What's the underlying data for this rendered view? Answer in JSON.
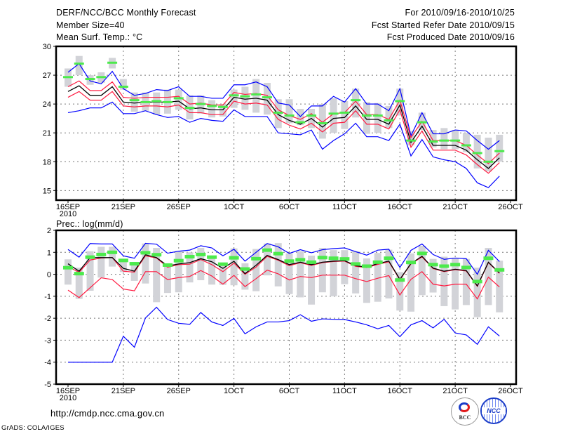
{
  "header": {
    "title": "DERF/NCC/BCC Monthly Forecast",
    "member_size": "Member Size=40",
    "period": "For 2010/09/16-2010/10/25",
    "start_date": "Fcst Started Refer Date 2010/09/15",
    "produced_date": "Fcst Produced Date 2010/09/16"
  },
  "footer": {
    "url": "http://cmdp.ncc.cma.gov.cn",
    "credit": "GrADS: COLA/IGES",
    "logo_bcc": "BCC",
    "logo_ncc": "NCC"
  },
  "colors": {
    "max_min": "#0000ff",
    "spread": "#ff1a40",
    "mean": "#000000",
    "range": "#d2d3d8",
    "obs": "#4cea4c",
    "grid": "#777777"
  },
  "chart_data": [
    {
      "type": "line",
      "title": "Mean Surf. Temp.: °C",
      "x_ticks": [
        "16SEP",
        "21SEP",
        "26SEP",
        "1OCT",
        "6OCT",
        "11OCT",
        "16OCT",
        "21OCT",
        "26OCT"
      ],
      "x_tick_year": "2010",
      "y_ticks": [
        "15",
        "18",
        "21",
        "24",
        "27",
        "30"
      ],
      "ylim": [
        14,
        30
      ],
      "grid": true,
      "max": [
        27.3,
        28.2,
        26.4,
        26.1,
        27.4,
        25.6,
        24.9,
        25.1,
        25.5,
        25.4,
        25.8,
        24.8,
        24.8,
        24.6,
        24.6,
        26.0,
        26.0,
        26.3,
        25.8,
        24.1,
        23.9,
        22.7,
        23.8,
        23.8,
        24.8,
        24.2,
        25.6,
        24.0,
        24.0,
        23.3,
        25.6,
        20.7,
        23.1,
        20.9,
        20.9,
        21.3,
        21.2,
        20.2,
        19.3,
        20.2
      ],
      "upper": [
        25.8,
        26.4,
        25.4,
        25.4,
        26.3,
        24.7,
        24.6,
        24.7,
        24.7,
        24.7,
        24.8,
        24.0,
        24.1,
        23.9,
        23.9,
        25.2,
        25.0,
        25.1,
        24.9,
        23.4,
        22.8,
        22.4,
        23.0,
        22.1,
        23.0,
        23.1,
        24.3,
        22.9,
        22.9,
        22.4,
        24.4,
        20.5,
        22.2,
        20.2,
        20.2,
        20.2,
        19.7,
        18.7,
        17.8,
        18.9
      ],
      "mean": [
        25.3,
        25.9,
        24.9,
        24.9,
        25.8,
        24.2,
        24.1,
        24.2,
        24.2,
        24.2,
        24.3,
        23.5,
        23.6,
        23.4,
        23.4,
        24.7,
        24.5,
        24.6,
        24.4,
        22.9,
        22.3,
        21.9,
        22.5,
        21.6,
        22.5,
        22.6,
        23.8,
        22.4,
        22.4,
        21.9,
        23.9,
        20.0,
        21.7,
        19.7,
        19.7,
        19.7,
        19.2,
        18.2,
        17.3,
        18.4
      ],
      "lower": [
        24.7,
        25.3,
        24.4,
        24.4,
        25.3,
        23.8,
        23.7,
        23.8,
        23.8,
        23.7,
        23.9,
        23.1,
        23.1,
        22.9,
        22.9,
        24.3,
        24.0,
        24.1,
        23.9,
        22.4,
        21.8,
        21.4,
        22.0,
        21.1,
        22.0,
        22.1,
        23.3,
        21.9,
        21.9,
        21.4,
        23.4,
        19.5,
        21.2,
        19.2,
        19.2,
        19.2,
        18.7,
        17.7,
        16.8,
        17.9
      ],
      "min": [
        23.1,
        23.3,
        23.6,
        23.6,
        24.2,
        23.0,
        23.0,
        23.3,
        22.9,
        22.6,
        22.7,
        22.1,
        22.5,
        22.3,
        22.2,
        23.4,
        22.7,
        22.7,
        22.7,
        21.0,
        20.9,
        20.8,
        21.3,
        19.3,
        20.2,
        20.9,
        22.0,
        20.6,
        20.6,
        20.2,
        21.9,
        18.6,
        20.3,
        18.5,
        18.2,
        18.0,
        17.3,
        15.8,
        15.3,
        16.5
      ],
      "range_low": [
        25.8,
        27.0,
        26.0,
        26.2,
        27.7,
        25.5,
        23.2,
        23.3,
        22.9,
        23.0,
        23.4,
        22.4,
        23.0,
        22.6,
        22.7,
        23.6,
        23.4,
        23.1,
        22.9,
        21.5,
        22.0,
        21.8,
        21.5,
        20.4,
        21.0,
        21.4,
        22.6,
        20.9,
        21.0,
        21.5,
        22.8,
        19.7,
        21.3,
        19.5,
        19.3,
        19.3,
        19.0,
        17.3,
        17.0,
        18.0
      ],
      "range_high": [
        27.7,
        29.0,
        27.0,
        27.3,
        28.8,
        26.6,
        25.2,
        25.2,
        25.2,
        25.5,
        25.5,
        24.9,
        24.9,
        24.4,
        24.0,
        25.5,
        25.8,
        26.6,
        26.2,
        24.5,
        24.5,
        23.5,
        23.5,
        24.0,
        24.6,
        24.3,
        25.6,
        24.2,
        24.1,
        23.8,
        25.6,
        21.2,
        23.1,
        21.3,
        21.5,
        21.3,
        21.0,
        20.8,
        20.5,
        20.8
      ],
      "obs": [
        26.8,
        28.2,
        26.6,
        26.8,
        28.3,
        25.8,
        24.4,
        24.2,
        24.3,
        24.2,
        24.6,
        23.6,
        24.0,
        23.8,
        23.7,
        24.9,
        24.8,
        25.0,
        24.7,
        23.1,
        22.8,
        22.1,
        22.8,
        22.0,
        23.0,
        23.1,
        24.4,
        22.8,
        22.8,
        22.3,
        24.3,
        20.2,
        22.1,
        20.1,
        20.2,
        20.2,
        19.7,
        18.9,
        18.0,
        19.1
      ]
    },
    {
      "type": "line",
      "title": "Prec.: log(mm/d)",
      "x_ticks": [
        "16SEP",
        "21SEP",
        "26SEP",
        "1OCT",
        "6OCT",
        "11OCT",
        "16OCT",
        "21OCT",
        "26OCT"
      ],
      "x_tick_year": "2010",
      "y_ticks": [
        "-5",
        "-4",
        "-3",
        "-2",
        "-1",
        "0",
        "1",
        "2"
      ],
      "ylim": [
        -5,
        2
      ],
      "grid": true,
      "max": [
        1.13,
        0.78,
        1.4,
        1.38,
        1.38,
        0.84,
        0.73,
        1.41,
        1.37,
        0.96,
        1.05,
        1.1,
        1.3,
        1.2,
        0.84,
        1.14,
        0.6,
        1.0,
        1.4,
        1.25,
        0.95,
        1.12,
        0.98,
        1.12,
        1.17,
        1.2,
        1.03,
        0.87,
        1.1,
        1.14,
        0.31,
        1.09,
        1.38,
        0.9,
        0.68,
        0.74,
        0.71,
        0.0,
        1.09,
        0.58
      ],
      "upper": [
        0.35,
        0.09,
        0.65,
        0.74,
        0.76,
        0.14,
        0.1,
        0.84,
        0.74,
        0.32,
        0.44,
        0.46,
        0.67,
        0.44,
        0.12,
        0.51,
        0.0,
        0.33,
        0.82,
        0.64,
        0.39,
        0.53,
        0.4,
        0.53,
        0.58,
        0.6,
        0.36,
        0.3,
        0.45,
        0.57,
        -0.25,
        0.47,
        0.79,
        0.26,
        0.12,
        0.21,
        0.15,
        -0.55,
        0.53,
        0.04
      ],
      "mean": [
        0.48,
        0.14,
        0.76,
        0.76,
        0.76,
        0.27,
        0.14,
        0.89,
        0.76,
        0.38,
        0.47,
        0.53,
        0.71,
        0.57,
        0.27,
        0.59,
        0.03,
        0.41,
        0.86,
        0.67,
        0.44,
        0.55,
        0.44,
        0.55,
        0.6,
        0.62,
        0.39,
        0.33,
        0.49,
        0.6,
        -0.23,
        0.49,
        0.82,
        0.28,
        0.14,
        0.23,
        0.17,
        -0.53,
        0.55,
        0.06
      ],
      "lower": [
        -0.72,
        -1.06,
        -0.61,
        -0.16,
        -0.24,
        -0.67,
        -0.75,
        0.12,
        0.12,
        -0.24,
        -0.15,
        -0.1,
        0.17,
        -0.08,
        -0.45,
        -0.05,
        -0.56,
        -0.2,
        0.19,
        0.02,
        -0.26,
        -0.1,
        -0.15,
        -0.04,
        -0.04,
        -0.04,
        -0.2,
        -0.33,
        -0.18,
        -0.06,
        -0.94,
        -0.23,
        0.12,
        -0.45,
        -0.53,
        -0.45,
        -0.45,
        -1.12,
        -0.13,
        -0.58
      ],
      "min": [
        -4.0,
        -4.0,
        -4.0,
        -4.0,
        -4.0,
        -2.82,
        -3.32,
        -1.99,
        -1.5,
        -2.06,
        -2.23,
        -2.28,
        -1.74,
        -2.17,
        -2.33,
        -2.01,
        -2.71,
        -2.39,
        -2.17,
        -2.17,
        -2.11,
        -1.84,
        -2.14,
        -2.03,
        -2.05,
        -2.06,
        -2.17,
        -2.3,
        -2.48,
        -2.33,
        -2.84,
        -2.3,
        -2.11,
        -2.44,
        -2.05,
        -2.67,
        -2.76,
        -3.19,
        -2.39,
        -2.81
      ],
      "range_low": [
        -0.47,
        -1.12,
        -0.75,
        -0.15,
        0.35,
        0.1,
        -0.3,
        -0.42,
        -1.27,
        -0.85,
        -0.82,
        -0.37,
        -0.27,
        -0.47,
        -0.48,
        -0.5,
        -0.7,
        -0.77,
        -0.05,
        -0.55,
        -0.9,
        -1.05,
        -1.38,
        -0.82,
        -1.0,
        -0.45,
        -0.87,
        -1.3,
        -1.25,
        -1.1,
        -1.65,
        -1.7,
        -0.95,
        -0.83,
        -1.45,
        -1.6,
        -1.4,
        -1.95,
        -1.4,
        -1.73
      ],
      "range_high": [
        0.68,
        0.3,
        1.05,
        1.25,
        1.25,
        0.68,
        0.55,
        1.4,
        1.2,
        0.48,
        1.05,
        1.0,
        1.2,
        0.8,
        0.5,
        1.18,
        0.5,
        1.15,
        1.4,
        1.42,
        0.95,
        1.05,
        0.85,
        1.2,
        1.1,
        1.1,
        1.05,
        0.72,
        0.97,
        1.12,
        0.1,
        0.95,
        1.3,
        0.7,
        0.8,
        0.75,
        0.7,
        0.3,
        1.2,
        0.62
      ],
      "obs": [
        0.3,
        0.03,
        0.78,
        0.9,
        1.0,
        0.63,
        0.48,
        0.98,
        0.89,
        0.42,
        0.62,
        0.8,
        0.9,
        0.78,
        0.46,
        0.75,
        0.24,
        0.71,
        1.1,
        0.94,
        0.6,
        0.66,
        0.55,
        0.76,
        0.73,
        0.7,
        0.47,
        0.37,
        0.55,
        0.73,
        -0.26,
        0.54,
        0.95,
        0.44,
        0.37,
        0.44,
        0.31,
        -0.33,
        0.73,
        0.2
      ]
    }
  ]
}
